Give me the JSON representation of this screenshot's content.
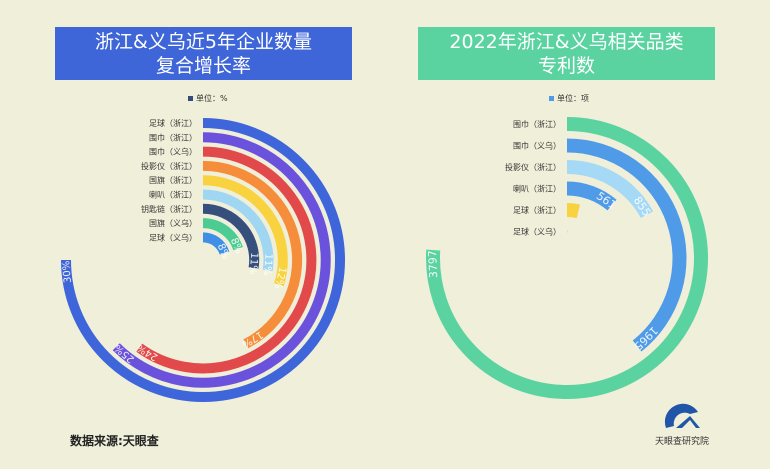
{
  "chart_data": [
    {
      "type": "radial-bar",
      "title_line1": "浙江&义乌近5年企业数量",
      "title_line2": "复合增长率",
      "unit_label": "单位：%",
      "value_suffix": "%",
      "axis_max": 40,
      "color_title": "#3f66d8",
      "categories": [
        "足球（浙江）",
        "围巾（浙江）",
        "围巾（义乌）",
        "投影仪（浙江）",
        "国旗（浙江）",
        "喇叭（浙江）",
        "钥匙链（浙江）",
        "国旗（义乌）",
        "足球（义乌）"
      ],
      "values": [
        30,
        25,
        24,
        17,
        12,
        11,
        11,
        8,
        8
      ],
      "colors": [
        "#3e65d9",
        "#6a52dc",
        "#e1494a",
        "#f58d3a",
        "#f8d33f",
        "#9fd6f2",
        "#364f7d",
        "#4ccc93",
        "#3f8fe6"
      ],
      "show_labels": [
        true,
        true,
        true,
        true,
        true,
        true,
        true,
        true,
        true
      ]
    },
    {
      "type": "radial-bar",
      "title_line1": "2022年浙江&义乌相关品类",
      "title_line2": "专利数",
      "unit_label": "单位：项",
      "value_suffix": "",
      "axis_max": 5000,
      "color_title": "#5bd3a1",
      "categories": [
        "围巾（浙江）",
        "围巾（义乌）",
        "投影仪（浙江）",
        "喇叭（浙江）",
        "足球（浙江）",
        "足球（义乌）"
      ],
      "values": [
        3797,
        1965,
        855,
        561,
        190,
        10
      ],
      "colors": [
        "#5bd3a1",
        "#4f9be8",
        "#a6d9f5",
        "#4f9be8",
        "#f8d33f",
        "#9fb8d0"
      ],
      "show_labels": [
        true,
        true,
        true,
        true,
        false,
        false
      ]
    }
  ],
  "footer": {
    "source": "数据来源:天眼查",
    "logo_text": "天眼查研究院"
  }
}
